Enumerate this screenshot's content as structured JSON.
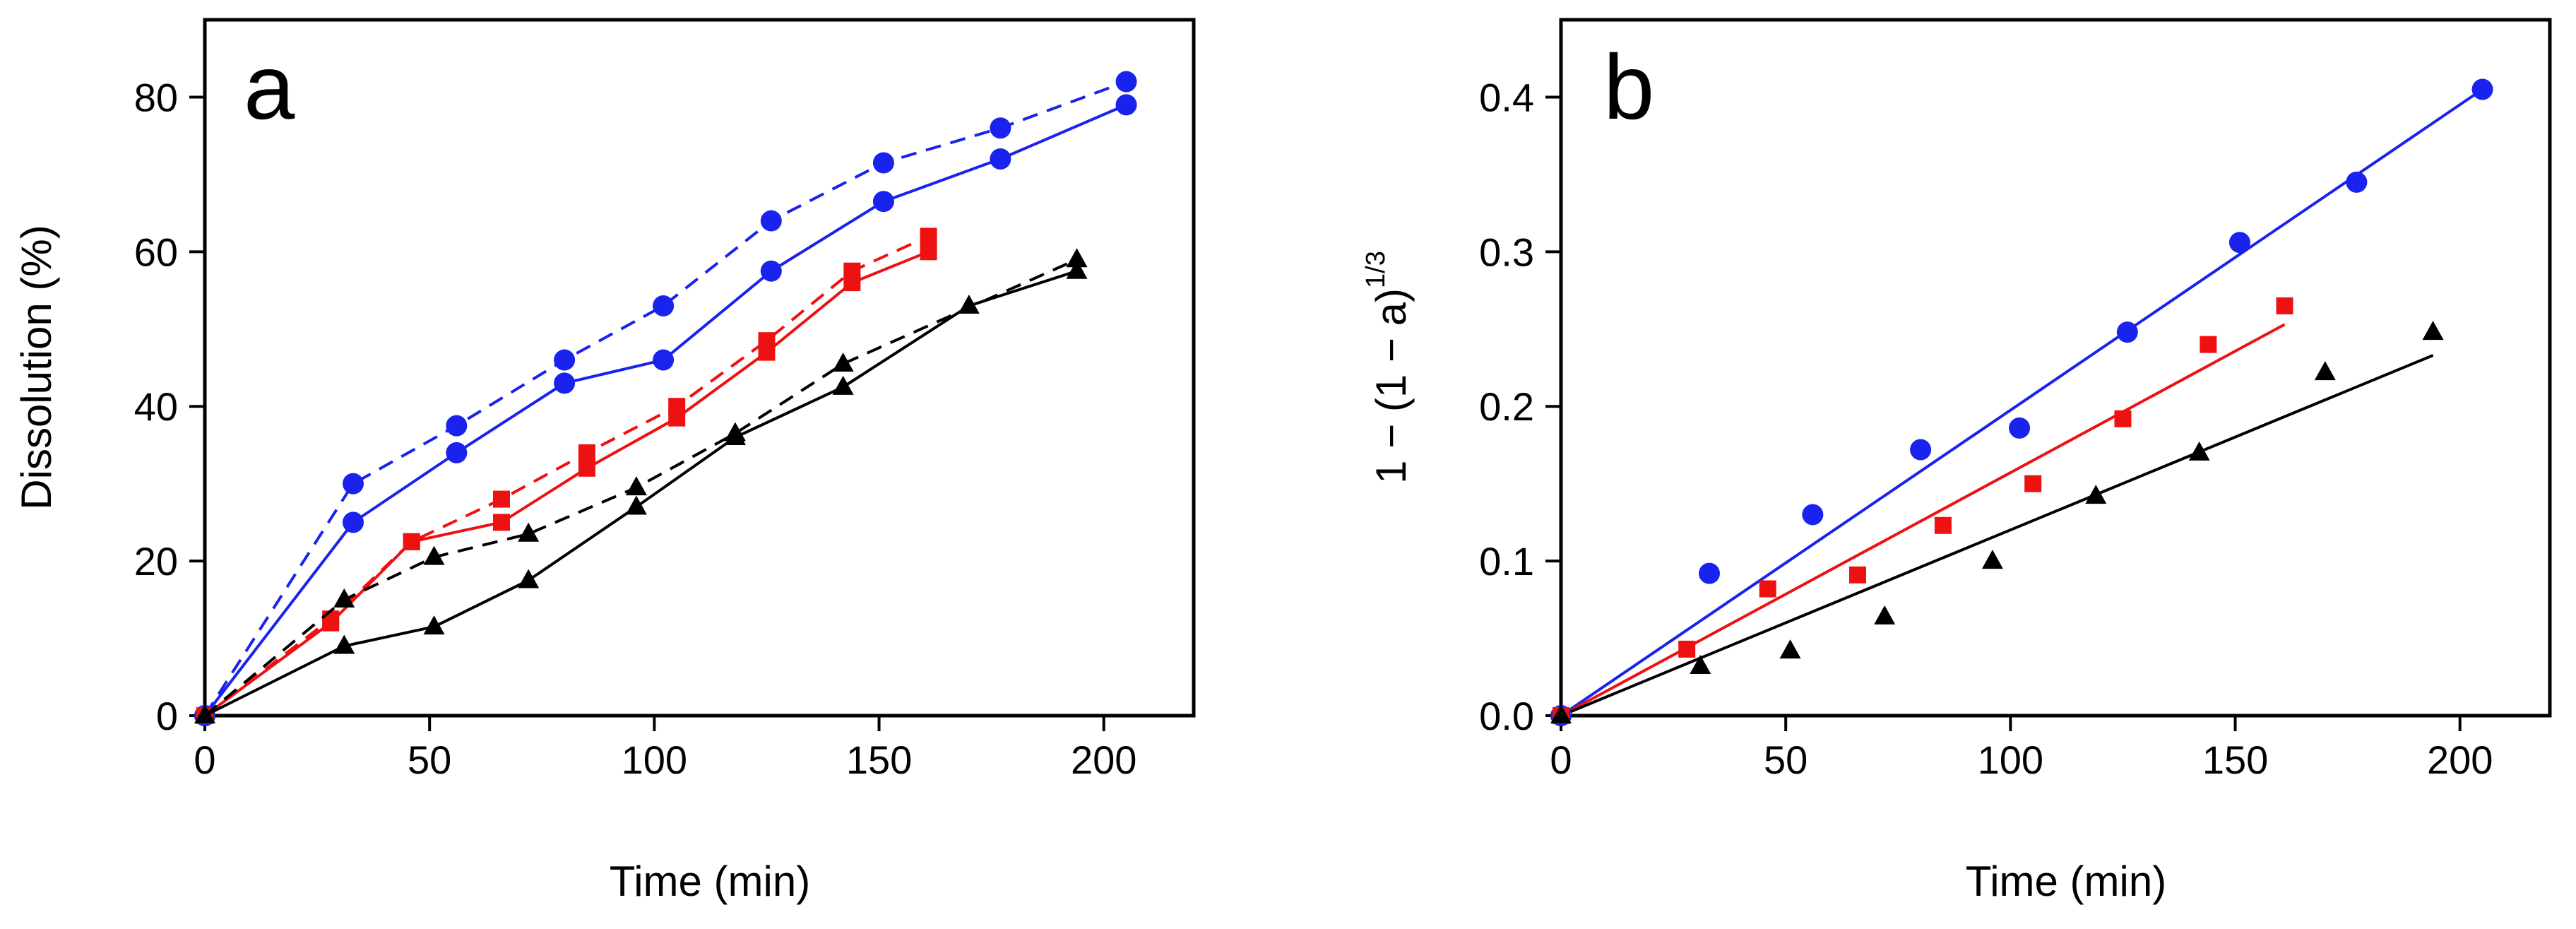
{
  "colors": {
    "blue": "#1a22ee",
    "red": "#ee1111",
    "black": "#000000",
    "axis": "#000000"
  },
  "chart_data": [
    {
      "type": "line",
      "panel_label": "a",
      "title": "",
      "xlabel": "Time (min)",
      "ylabel": "Dissolution (%)",
      "xlim": [
        0,
        220
      ],
      "ylim": [
        0,
        90
      ],
      "xticks": [
        "0",
        "50",
        "100",
        "150",
        "200"
      ],
      "yticks": [
        "0",
        "20",
        "40",
        "60",
        "80"
      ],
      "grid": false,
      "legend": "none",
      "series": [
        {
          "name": "blue dashed",
          "color": "blue",
          "marker": "circle",
          "dashed": true,
          "x": [
            0,
            33,
            56,
            80,
            102,
            126,
            151,
            177,
            205
          ],
          "y": [
            0,
            30,
            37.5,
            46,
            53,
            64,
            71.5,
            76,
            82
          ]
        },
        {
          "name": "blue solid",
          "color": "blue",
          "marker": "circle",
          "dashed": false,
          "x": [
            0,
            33,
            56,
            80,
            102,
            126,
            151,
            177,
            205
          ],
          "y": [
            0,
            25,
            34,
            43,
            46,
            57.5,
            66.5,
            72,
            79
          ]
        },
        {
          "name": "red dashed",
          "color": "red",
          "marker": "square",
          "dashed": true,
          "x": [
            0,
            28,
            46,
            66,
            85,
            105,
            125,
            144,
            161
          ],
          "y": [
            0,
            12.5,
            22.5,
            28,
            34,
            40,
            48.5,
            57.5,
            62
          ]
        },
        {
          "name": "red solid",
          "color": "red",
          "marker": "square",
          "dashed": false,
          "x": [
            0,
            28,
            46,
            66,
            85,
            105,
            125,
            144,
            161
          ],
          "y": [
            0,
            12,
            22.5,
            25,
            32,
            38.5,
            47,
            56,
            60
          ]
        },
        {
          "name": "black dashed",
          "color": "black",
          "marker": "triangle",
          "dashed": true,
          "x": [
            0,
            31,
            51,
            72,
            96,
            118,
            142,
            194
          ],
          "y": [
            0,
            15,
            20.5,
            23.5,
            29.5,
            36.5,
            45.5,
            59
          ]
        },
        {
          "name": "black solid",
          "color": "black",
          "marker": "triangle",
          "dashed": false,
          "x": [
            0,
            31,
            51,
            72,
            96,
            118,
            142,
            170,
            194
          ],
          "y": [
            0,
            9,
            11.5,
            17.5,
            27,
            36,
            42.5,
            53,
            57.5
          ]
        }
      ]
    },
    {
      "type": "scatter",
      "panel_label": "b",
      "title": "",
      "xlabel": "Time (min)",
      "ylabel_main": "1 − (1 − a)",
      "ylabel_sup": "1/3",
      "xlim": [
        0,
        220
      ],
      "ylim": [
        0,
        0.45
      ],
      "xticks": [
        "0",
        "50",
        "100",
        "150",
        "200"
      ],
      "yticks": [
        "0.0",
        "0.1",
        "0.2",
        "0.3",
        "0.4"
      ],
      "grid": false,
      "legend": "none",
      "series": [
        {
          "name": "blue",
          "color": "blue",
          "marker": "circle",
          "x": [
            0,
            33,
            56,
            80,
            102,
            126,
            151,
            177,
            205
          ],
          "y": [
            0,
            0.092,
            0.13,
            0.172,
            0.186,
            0.248,
            0.306,
            0.345,
            0.405
          ],
          "fit": {
            "x": [
              0,
              205
            ],
            "y": [
              0,
              0.405
            ]
          }
        },
        {
          "name": "red",
          "color": "red",
          "marker": "square",
          "x": [
            0,
            28,
            46,
            66,
            85,
            105,
            125,
            144,
            161
          ],
          "y": [
            0,
            0.043,
            0.082,
            0.091,
            0.123,
            0.15,
            0.192,
            0.24,
            0.265
          ],
          "fit": {
            "x": [
              0,
              161
            ],
            "y": [
              0,
              0.253
            ]
          }
        },
        {
          "name": "black",
          "color": "black",
          "marker": "triangle",
          "x": [
            0,
            31,
            51,
            72,
            96,
            119,
            142,
            170,
            194
          ],
          "y": [
            0,
            0.032,
            0.042,
            0.064,
            0.1,
            0.142,
            0.17,
            0.222,
            0.248
          ],
          "fit": {
            "x": [
              0,
              194
            ],
            "y": [
              0,
              0.233
            ]
          }
        }
      ]
    }
  ]
}
